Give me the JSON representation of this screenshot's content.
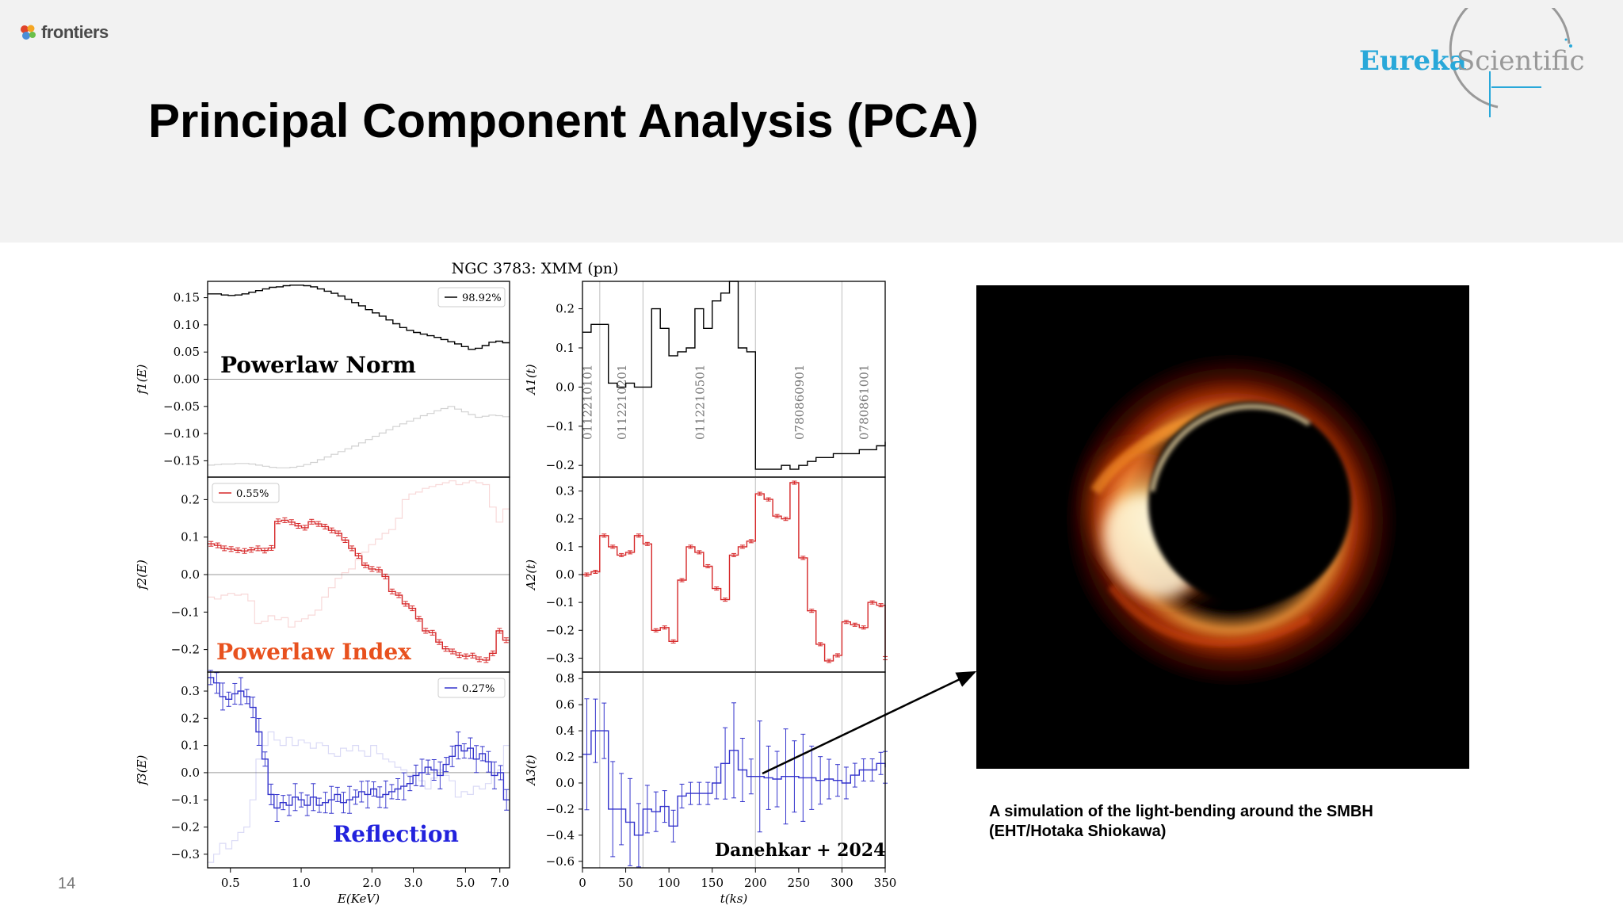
{
  "slide": {
    "title": "Principal Component Analysis (PCA)",
    "page_number": "14",
    "brand_left": "frontiers",
    "brand_right_a": "Eureka",
    "brand_right_b": "Scientific",
    "caption_line1": "A simulation of the light-bending around the SMBH",
    "caption_line2": "(EHT/Hotaka Shiokawa)",
    "colors": {
      "header_bg": "#f2f2f2",
      "eureka_blue": "#29a8d9",
      "pc1": "#000000",
      "pc2": "#d62728",
      "pc3": "#3333cc",
      "label_pc2": "#e8511e",
      "label_pc3": "#2222dd"
    }
  },
  "chart_data": [
    {
      "type": "line",
      "title": "NGC 3783: XMM (pn)",
      "panel": "f1",
      "ylabel": "f1(E)",
      "ylim": [
        -0.18,
        0.18
      ],
      "yticks": [
        "0.15",
        "0.10",
        "0.05",
        "0.00",
        "−0.05",
        "−0.10",
        "−0.15"
      ],
      "yticks_values": [
        0.15,
        0.1,
        0.05,
        0.0,
        -0.05,
        -0.1,
        -0.15
      ],
      "legend": "98.92%",
      "annotation": "Powerlaw Norm",
      "x_scale": "log",
      "xlim": [
        0.4,
        7.7
      ],
      "series": [
        {
          "name": "",
          "values": [
            0.157,
            0.157,
            0.155,
            0.154,
            0.155,
            0.157,
            0.16,
            0.163,
            0.166,
            0.169,
            0.17,
            0.172,
            0.173,
            0.173,
            0.172,
            0.17,
            0.166,
            0.162,
            0.158,
            0.153,
            0.147,
            0.141,
            0.135,
            0.128,
            0.122,
            0.116,
            0.109,
            0.102,
            0.095,
            0.09,
            0.086,
            0.083,
            0.08,
            0.077,
            0.073,
            0.069,
            0.065,
            0.06,
            0.055,
            0.057,
            0.062,
            0.068,
            0.07,
            0.067
          ],
          "ghost": [
            -0.158,
            -0.157,
            -0.156,
            -0.156,
            -0.155,
            -0.155,
            -0.156,
            -0.158,
            -0.16,
            -0.162,
            -0.163,
            -0.163,
            -0.162,
            -0.16,
            -0.157,
            -0.153,
            -0.148,
            -0.143,
            -0.138,
            -0.133,
            -0.128,
            -0.123,
            -0.117,
            -0.111,
            -0.105,
            -0.099,
            -0.093,
            -0.087,
            -0.082,
            -0.077,
            -0.072,
            -0.067,
            -0.063,
            -0.058,
            -0.054,
            -0.05,
            -0.055,
            -0.06,
            -0.065,
            -0.07,
            -0.068,
            -0.066,
            -0.067,
            -0.069
          ]
        }
      ]
    },
    {
      "type": "line",
      "panel": "f2",
      "ylabel": "f2(E)",
      "ylim": [
        -0.26,
        0.26
      ],
      "yticks": [
        "0.2",
        "0.1",
        "0.0",
        "−0.1",
        "−0.2"
      ],
      "yticks_values": [
        0.2,
        0.1,
        0.0,
        -0.1,
        -0.2
      ],
      "legend": "0.55%",
      "annotation": "Powerlaw Index",
      "x_scale": "log",
      "xlim": [
        0.4,
        7.7
      ],
      "series": [
        {
          "name": "",
          "values": [
            0.082,
            0.078,
            0.07,
            0.068,
            0.065,
            0.063,
            0.066,
            0.07,
            0.064,
            0.071,
            0.142,
            0.145,
            0.14,
            0.13,
            0.125,
            0.141,
            0.135,
            0.128,
            0.118,
            0.11,
            0.092,
            0.07,
            0.05,
            0.025,
            0.015,
            0.013,
            -0.005,
            -0.045,
            -0.055,
            -0.078,
            -0.09,
            -0.118,
            -0.15,
            -0.155,
            -0.18,
            -0.198,
            -0.205,
            -0.215,
            -0.218,
            -0.216,
            -0.226,
            -0.228,
            -0.21,
            -0.15,
            -0.175
          ],
          "ghost": [
            -0.06,
            -0.065,
            -0.055,
            -0.05,
            -0.055,
            -0.052,
            -0.07,
            -0.13,
            -0.125,
            -0.11,
            -0.12,
            -0.115,
            -0.14,
            -0.125,
            -0.118,
            -0.108,
            -0.095,
            -0.06,
            -0.035,
            -0.01,
            0.005,
            0.015,
            0.04,
            0.06,
            0.08,
            0.095,
            0.11,
            0.12,
            0.15,
            0.2,
            0.215,
            0.22,
            0.23,
            0.235,
            0.24,
            0.245,
            0.25,
            0.24,
            0.245,
            0.25,
            0.245,
            0.24,
            0.18,
            0.14,
            0.175
          ]
        }
      ]
    },
    {
      "type": "line",
      "panel": "f3",
      "ylabel": "f3(E)",
      "ylim": [
        -0.35,
        0.37
      ],
      "yticks": [
        "0.3",
        "0.2",
        "0.1",
        "0.0",
        "−0.1",
        "−0.2",
        "−0.3"
      ],
      "yticks_values": [
        0.3,
        0.2,
        0.1,
        0.0,
        -0.1,
        -0.2,
        -0.3
      ],
      "legend": "0.27%",
      "annotation": "Reflection",
      "xlabel": "E(KeV)",
      "xticks": [
        "0.5",
        "1.0",
        "2.0",
        "3.0",
        "5.0",
        "7.0"
      ],
      "xticks_values": [
        0.5,
        1.0,
        2.0,
        3.0,
        5.0,
        7.0
      ],
      "x_scale": "log",
      "xlim": [
        0.4,
        7.7
      ],
      "series": [
        {
          "name": "",
          "values": [
            0.35,
            0.33,
            0.28,
            0.27,
            0.29,
            0.3,
            0.28,
            0.24,
            0.15,
            0.05,
            -0.08,
            -0.13,
            -0.11,
            -0.12,
            -0.09,
            -0.1,
            -0.12,
            -0.09,
            -0.12,
            -0.11,
            -0.1,
            -0.08,
            -0.11,
            -0.1,
            -0.09,
            -0.07,
            -0.08,
            -0.06,
            -0.09,
            -0.08,
            -0.07,
            -0.06,
            -0.05,
            -0.04,
            -0.01,
            0.0,
            0.02,
            0.01,
            -0.01,
            0.03,
            0.06,
            0.1,
            0.08,
            0.09,
            0.05,
            0.07,
            0.04,
            -0.01,
            0.0,
            -0.1
          ],
          "ghost": [
            -0.33,
            -0.3,
            -0.26,
            -0.28,
            -0.25,
            -0.22,
            -0.2,
            -0.1,
            0.05,
            0.1,
            0.15,
            0.12,
            0.1,
            0.13,
            0.1,
            0.12,
            0.11,
            0.09,
            0.11,
            0.1,
            0.07,
            0.06,
            0.09,
            0.08,
            0.1,
            0.08,
            0.06,
            0.1,
            0.07,
            0.05,
            0.04,
            0.02,
            0.01,
            -0.01,
            0.0,
            -0.03,
            -0.06,
            -0.02,
            0.01,
            -0.01,
            -0.03,
            -0.09,
            -0.07,
            -0.08,
            -0.05,
            -0.06,
            -0.04,
            0.0,
            0.01,
            0.1
          ]
        }
      ]
    },
    {
      "type": "line",
      "panel": "A1",
      "ylabel": "A1(t)",
      "ylim": [
        -0.23,
        0.27
      ],
      "yticks": [
        "0.2",
        "0.1",
        "0.0",
        "−0.1",
        "−0.2"
      ],
      "yticks_values": [
        0.2,
        0.1,
        0.0,
        -0.1,
        -0.2
      ],
      "obs_lines": [
        20,
        70,
        200,
        300
      ],
      "obs_labels": [
        "0112210101",
        "0112210201",
        "0112210501",
        "0780860901",
        "0780861001"
      ],
      "obs_label_x": [
        5,
        45,
        135,
        250,
        325
      ],
      "x": [
        0,
        10,
        20,
        30,
        40,
        50,
        60,
        70,
        80,
        90,
        100,
        110,
        120,
        130,
        140,
        150,
        160,
        170,
        180,
        190,
        200,
        210,
        220,
        230,
        240,
        250,
        260,
        270,
        280,
        290,
        300,
        310,
        320,
        330,
        340,
        350
      ],
      "series": [
        {
          "name": "",
          "values": [
            0.14,
            0.16,
            0.16,
            0.01,
            0.0,
            0.01,
            0.0,
            0.0,
            0.2,
            0.15,
            0.08,
            0.09,
            0.1,
            0.2,
            0.15,
            0.22,
            0.24,
            0.27,
            0.1,
            0.09,
            -0.21,
            -0.21,
            -0.21,
            -0.2,
            -0.21,
            -0.2,
            -0.19,
            -0.18,
            -0.18,
            -0.17,
            -0.17,
            -0.17,
            -0.16,
            -0.16,
            -0.15,
            -0.14
          ]
        }
      ]
    },
    {
      "type": "line",
      "panel": "A2",
      "ylabel": "A2(t)",
      "ylim": [
        -0.35,
        0.35
      ],
      "yticks": [
        "0.3",
        "0.2",
        "0.1",
        "0.0",
        "−0.1",
        "−0.2",
        "−0.3"
      ],
      "yticks_values": [
        0.3,
        0.2,
        0.1,
        0.0,
        -0.1,
        -0.2,
        -0.3
      ],
      "obs_lines": [
        20,
        70,
        200,
        300
      ],
      "x": [
        0,
        10,
        20,
        30,
        40,
        50,
        60,
        70,
        80,
        90,
        100,
        110,
        120,
        130,
        140,
        150,
        160,
        170,
        180,
        190,
        200,
        210,
        220,
        230,
        240,
        250,
        260,
        270,
        280,
        290,
        300,
        310,
        320,
        330,
        340,
        350
      ],
      "series": [
        {
          "name": "",
          "values": [
            0.0,
            0.01,
            0.14,
            0.1,
            0.07,
            0.08,
            0.14,
            0.11,
            -0.2,
            -0.19,
            -0.24,
            -0.02,
            0.1,
            0.08,
            0.03,
            -0.05,
            -0.09,
            0.07,
            0.1,
            0.12,
            0.29,
            0.27,
            0.21,
            0.2,
            0.33,
            0.06,
            -0.13,
            -0.25,
            -0.31,
            -0.29,
            -0.17,
            -0.18,
            -0.19,
            -0.1,
            -0.11,
            -0.3
          ]
        }
      ]
    },
    {
      "type": "line",
      "panel": "A3",
      "ylabel": "A3(t)",
      "ylim": [
        -0.65,
        0.85
      ],
      "yticks": [
        "0.8",
        "0.6",
        "0.4",
        "0.2",
        "0.0",
        "−0.2",
        "−0.4",
        "−0.6"
      ],
      "yticks_values": [
        0.8,
        0.6,
        0.4,
        0.2,
        0.0,
        -0.2,
        -0.4,
        -0.6
      ],
      "obs_lines": [
        20,
        70,
        200,
        300
      ],
      "annotation": "Danehkar +  2024",
      "xlabel": "t(ks)",
      "xticks": [
        "0",
        "50",
        "100",
        "150",
        "200",
        "250",
        "300",
        "350"
      ],
      "xticks_values": [
        0,
        50,
        100,
        150,
        200,
        250,
        300,
        350
      ],
      "xlim": [
        0,
        350
      ],
      "x": [
        0,
        10,
        20,
        30,
        40,
        50,
        60,
        70,
        80,
        90,
        100,
        110,
        120,
        130,
        140,
        150,
        160,
        170,
        180,
        190,
        200,
        210,
        220,
        230,
        240,
        250,
        260,
        270,
        280,
        290,
        300,
        310,
        320,
        330,
        340,
        350
      ],
      "series": [
        {
          "name": "",
          "values": [
            0.22,
            0.4,
            0.4,
            -0.2,
            -0.2,
            -0.3,
            -0.4,
            -0.2,
            -0.22,
            -0.18,
            -0.33,
            -0.1,
            -0.08,
            -0.08,
            -0.08,
            0.0,
            0.15,
            0.25,
            0.1,
            0.05,
            0.05,
            0.04,
            0.03,
            0.05,
            0.05,
            0.04,
            0.04,
            0.02,
            0.03,
            0.02,
            0.0,
            0.06,
            0.1,
            0.1,
            0.15,
            0.12
          ]
        }
      ]
    }
  ]
}
